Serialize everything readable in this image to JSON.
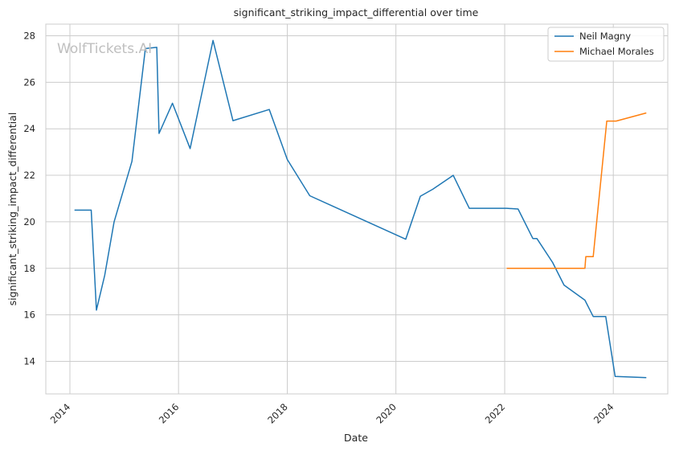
{
  "chart_data": {
    "type": "line",
    "title": "significant_striking_impact_differential over time",
    "xlabel": "Date",
    "ylabel": "significant_striking_impact_differential",
    "x_ticks": [
      "2014",
      "2016",
      "2018",
      "2020",
      "2022",
      "2024"
    ],
    "y_ticks": [
      "14",
      "16",
      "18",
      "20",
      "22",
      "24",
      "26",
      "28"
    ],
    "xlim": [
      "2013-07-23",
      "2025-01-01"
    ],
    "ylim": [
      12.6,
      28.5
    ],
    "grid": true,
    "legend_position": "top-right",
    "watermark": "WolfTickets.AI",
    "series": [
      {
        "name": "Neil Magny",
        "color": "#1f77b4",
        "points": [
          [
            "2014-02-01",
            20.5
          ],
          [
            "2014-05-24",
            20.5
          ],
          [
            "2014-06-28",
            16.2
          ],
          [
            "2014-08-23",
            17.7
          ],
          [
            "2014-10-25",
            20.0
          ],
          [
            "2015-02-22",
            22.6
          ],
          [
            "2015-05-23",
            27.45
          ],
          [
            "2015-08-08",
            27.5
          ],
          [
            "2015-08-23",
            23.8
          ],
          [
            "2015-11-21",
            25.1
          ],
          [
            "2016-03-19",
            23.15
          ],
          [
            "2016-08-20",
            27.8
          ],
          [
            "2017-01-01",
            24.35
          ],
          [
            "2017-09-02",
            24.83
          ],
          [
            "2018-01-01",
            22.68
          ],
          [
            "2018-06-01",
            21.12
          ],
          [
            "2020-03-07",
            19.25
          ],
          [
            "2020-06-13",
            21.1
          ],
          [
            "2020-09-05",
            21.4
          ],
          [
            "2021-01-20",
            22.0
          ],
          [
            "2021-05-08",
            20.58
          ],
          [
            "2022-01-15",
            20.58
          ],
          [
            "2022-04-01",
            20.55
          ],
          [
            "2022-07-09",
            19.28
          ],
          [
            "2022-08-05",
            19.28
          ],
          [
            "2022-11-19",
            18.25
          ],
          [
            "2023-02-04",
            17.28
          ],
          [
            "2023-06-24",
            16.63
          ],
          [
            "2023-08-19",
            15.93
          ],
          [
            "2023-11-11",
            15.93
          ],
          [
            "2024-01-13",
            13.35
          ],
          [
            "2024-08-10",
            13.3
          ]
        ]
      },
      {
        "name": "Michael Morales",
        "color": "#ff7f0e",
        "points": [
          [
            "2022-01-15",
            18.0
          ],
          [
            "2023-06-24",
            18.0
          ],
          [
            "2023-06-30",
            18.5
          ],
          [
            "2023-08-19",
            18.5
          ],
          [
            "2023-11-18",
            24.33
          ],
          [
            "2024-01-20",
            24.33
          ],
          [
            "2024-08-10",
            24.68
          ]
        ]
      }
    ]
  }
}
